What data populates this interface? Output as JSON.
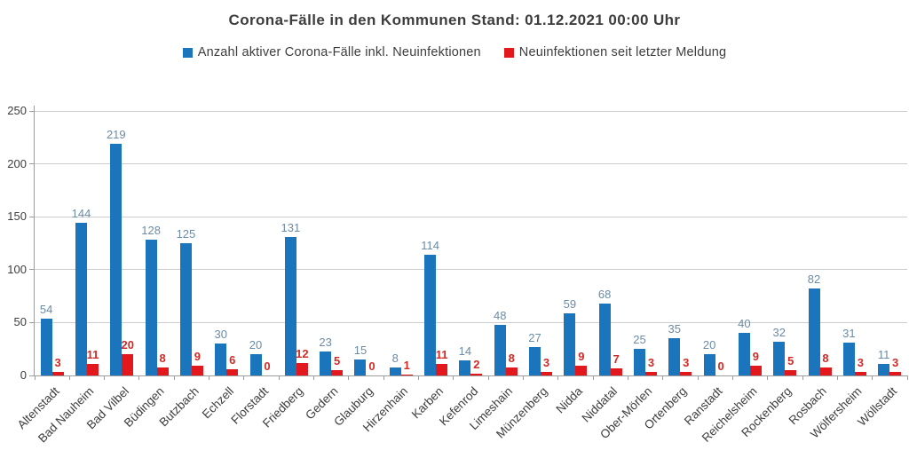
{
  "title": "Corona-Fälle in den Kommunen Stand: 01.12.2021 00:00 Uhr",
  "legend": [
    {
      "label": "Anzahl aktiver Corona-Fälle inkl. Neuinfektionen",
      "color": "#1b75bc"
    },
    {
      "label": "Neuinfektionen seit letzter Meldung",
      "color": "#e2181c"
    }
  ],
  "colors": {
    "grid": "#cccccc",
    "axis": "#9c9c9c",
    "text": "#3d3d3d",
    "active_cases_bar": "#1b75bc",
    "active_cases_label": "#6b8ba6",
    "new_infections_bar": "#e2181c",
    "new_infections_label": "#d22a26"
  },
  "chart_data": {
    "type": "bar",
    "title": "Corona-Fälle in den Kommunen Stand: 01.12.2021 00:00 Uhr",
    "xlabel": "",
    "ylabel": "",
    "ylim": [
      0,
      250
    ],
    "yticks": [
      0,
      50,
      100,
      150,
      200,
      250
    ],
    "grid": true,
    "legend_position": "top",
    "categories": [
      "Altenstadt",
      "Bad Nauheim",
      "Bad Vilbel",
      "Büdingen",
      "Butzbach",
      "Echzell",
      "Florstadt",
      "Friedberg",
      "Gedern",
      "Glauburg",
      "Hirzenhain",
      "Karben",
      "Kefenrod",
      "Limeshain",
      "Münzenberg",
      "Nidda",
      "Niddatal",
      "Ober-Mörlen",
      "Ortenberg",
      "Ranstadt",
      "Reichelsheim",
      "Rockenberg",
      "Rosbach",
      "Wölfersheim",
      "Wöllstadt"
    ],
    "series": [
      {
        "key": "active-cases",
        "name": "Anzahl aktiver Corona-Fälle inkl. Neuinfektionen",
        "color": "#1b75bc",
        "label_color": "#6b8ba6",
        "values": [
          54,
          144,
          219,
          128,
          125,
          30,
          20,
          131,
          23,
          15,
          8,
          114,
          14,
          48,
          27,
          59,
          68,
          25,
          35,
          20,
          40,
          32,
          82,
          31,
          11
        ]
      },
      {
        "key": "new-infections",
        "name": "Neuinfektionen seit letzter Meldung",
        "color": "#e2181c",
        "label_color": "#d22a26",
        "values": [
          3,
          11,
          20,
          8,
          9,
          6,
          0,
          12,
          5,
          0,
          1,
          11,
          2,
          8,
          3,
          9,
          7,
          3,
          3,
          0,
          9,
          5,
          8,
          3,
          3
        ]
      }
    ]
  }
}
